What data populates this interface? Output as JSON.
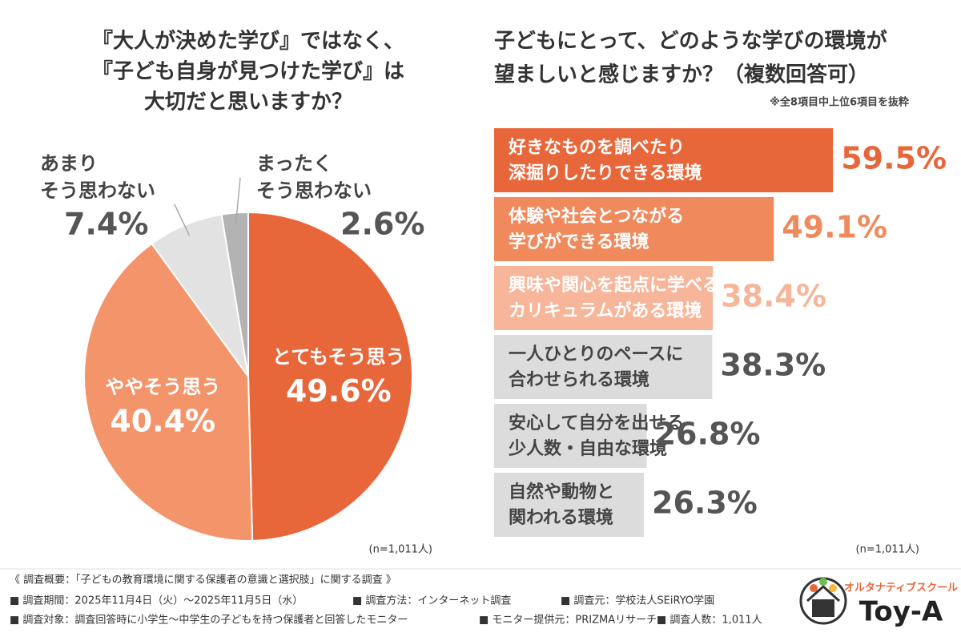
{
  "chart_data": [
    {
      "type": "pie",
      "title": [
        "『大人が決めた学び』ではなく、",
        "『子ども自身が見つけた学び』は",
        "大切だと思いますか？"
      ],
      "categories": [
        [
          "とてもそう思う"
        ],
        [
          "ややそう思う"
        ],
        [
          "あまり",
          "そう思わない"
        ],
        [
          "まったく",
          "そう思わない"
        ]
      ],
      "values": [
        49.6,
        40.4,
        7.4,
        2.6
      ],
      "value_labels": [
        "49.6%",
        "40.4%",
        "7.4%",
        "2.6%"
      ],
      "colors": [
        "#e8673a",
        "#f4946a",
        "#e2e2e2",
        "#b3b3b3"
      ],
      "note": "(n=1,011人)"
    },
    {
      "type": "hbar",
      "title": [
        "子どもにとって、どのような学びの環境が",
        "望ましいと感じますか？（複数回答可）"
      ],
      "subtitle": "※全8項目中上位6項目を抜粋",
      "categories": [
        [
          "好きなものを調べたり",
          "深掘りしたりできる環境"
        ],
        [
          "体験や社会とつながる",
          "学びができる環境"
        ],
        [
          "興味や関心を起点に学べる",
          "カリキュラムがある環境"
        ],
        [
          "一人ひとりのペースに",
          "合わせられる環境"
        ],
        [
          "安心して自分を出せる",
          "少人数・自由な環境"
        ],
        [
          "自然や動物と",
          "関われる環境"
        ]
      ],
      "values": [
        59.5,
        49.1,
        38.4,
        38.3,
        26.8,
        26.3
      ],
      "value_labels": [
        "59.5%",
        "49.1%",
        "38.4%",
        "38.3%",
        "26.8%",
        "26.3%"
      ],
      "colors": [
        "#e8673a",
        "#f08a5d",
        "#f7b59a",
        "#dcdcdc",
        "#dcdcdc",
        "#dcdcdc"
      ],
      "text_colors": [
        "#ffffff",
        "#ffffff",
        "#ffffff",
        "#444444",
        "#444444",
        "#444444"
      ],
      "value_label_colors": [
        "#e8673a",
        "#f08a5d",
        "#f7b59a",
        "#555555",
        "#555555",
        "#555555"
      ],
      "xlim": [
        0,
        80
      ],
      "note": "(n=1,011人)"
    }
  ],
  "footer": {
    "heading": "《 調査概要：「子どもの教育環境に関する保護者の意識と選択肢」に関する調査 》",
    "rows": [
      [
        "■ 調査期間：2025年11月4日（火）～2025年11月5日（水）",
        "■ 調査方法：インターネット調査",
        "■ 調査元：学校法人SEiRYO学園"
      ],
      [
        "■ 調査対象：調査回答時に小学生～中学生の子どもを持つ保護者と回答したモニター",
        "■ モニター提供元：PRIZMAリサーチ",
        "■ 調査人数：1,011人"
      ]
    ]
  },
  "logo": {
    "tagline": "オルタナティブスクール",
    "name": "Toy-A"
  }
}
